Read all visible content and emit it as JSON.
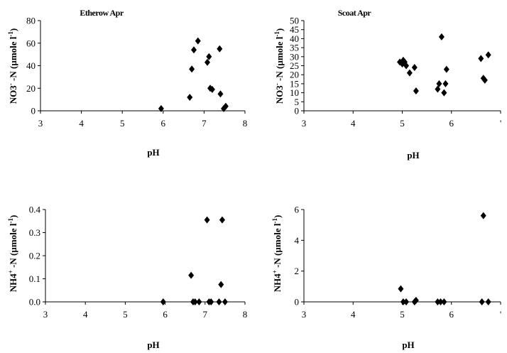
{
  "chart_data": [
    {
      "type": "scatter",
      "title": "Etherow Apr",
      "xlabel": "pH",
      "ylabel": "NO3 - -N (µmole l -1 )",
      "xlim": [
        3,
        8
      ],
      "ylim": [
        0,
        80
      ],
      "xticks": [
        "3",
        "4",
        "5",
        "6",
        "7",
        "8"
      ],
      "yticks": [
        "0",
        "20",
        "40",
        "60",
        "80"
      ],
      "x": [
        5.95,
        6.65,
        6.7,
        6.75,
        6.85,
        7.08,
        7.12,
        7.15,
        7.2,
        7.38,
        7.4,
        7.48,
        7.53
      ],
      "y": [
        2,
        12,
        37,
        54,
        62,
        43,
        48,
        20,
        19,
        55,
        15,
        2,
        4
      ]
    },
    {
      "type": "scatter",
      "title": "Scoat Apr",
      "xlabel": "pH",
      "ylabel": "NO3 - -N (µmole l -1 )",
      "xlim": [
        3,
        7
      ],
      "ylim": [
        0,
        50
      ],
      "xticks": [
        "3",
        "4",
        "5",
        "6",
        "'"
      ],
      "yticks": [
        "0",
        "5",
        "10",
        "15",
        "20",
        "25",
        "30",
        "35",
        "40",
        "45",
        "50"
      ],
      "x": [
        4.95,
        5.0,
        5.02,
        5.05,
        5.08,
        5.15,
        5.25,
        5.28,
        5.72,
        5.75,
        5.8,
        5.85,
        5.88,
        5.9,
        6.6,
        6.65,
        6.68,
        6.75
      ],
      "y": [
        27,
        26,
        28,
        27,
        25,
        21,
        24,
        11,
        12,
        15,
        41,
        10,
        15,
        23,
        29,
        18,
        17,
        31
      ]
    },
    {
      "type": "scatter",
      "title": "",
      "xlabel": "pH",
      "ylabel": "NH4 + -N (µmole l -1 )",
      "xlim": [
        3,
        8
      ],
      "ylim": [
        0,
        0.4
      ],
      "xticks": [
        "3",
        "4",
        "5",
        "6",
        "7",
        "8"
      ],
      "yticks": [
        "0.0",
        "0.1",
        "0.2",
        "0.3",
        "0.4"
      ],
      "x": [
        5.95,
        6.65,
        6.7,
        6.75,
        6.85,
        7.05,
        7.1,
        7.15,
        7.35,
        7.4,
        7.43,
        7.5
      ],
      "y": [
        0,
        0.115,
        0,
        0,
        0,
        0.355,
        0,
        0,
        0,
        0.075,
        0.355,
        0
      ]
    },
    {
      "type": "scatter",
      "title": "",
      "xlabel": "pH",
      "ylabel": "NH4 + -N (µmole l -1 )",
      "xlim": [
        3,
        7
      ],
      "ylim": [
        0,
        6
      ],
      "xticks": [
        "3",
        "4",
        "5",
        "6",
        "'"
      ],
      "yticks": [
        "0",
        "2",
        "4",
        "6"
      ],
      "x": [
        4.97,
        5.02,
        5.08,
        5.25,
        5.28,
        5.72,
        5.78,
        5.85,
        6.62,
        6.65,
        6.75
      ],
      "y": [
        0.85,
        0,
        0,
        0,
        0.1,
        0,
        0,
        0,
        0,
        5.6,
        0
      ]
    }
  ]
}
